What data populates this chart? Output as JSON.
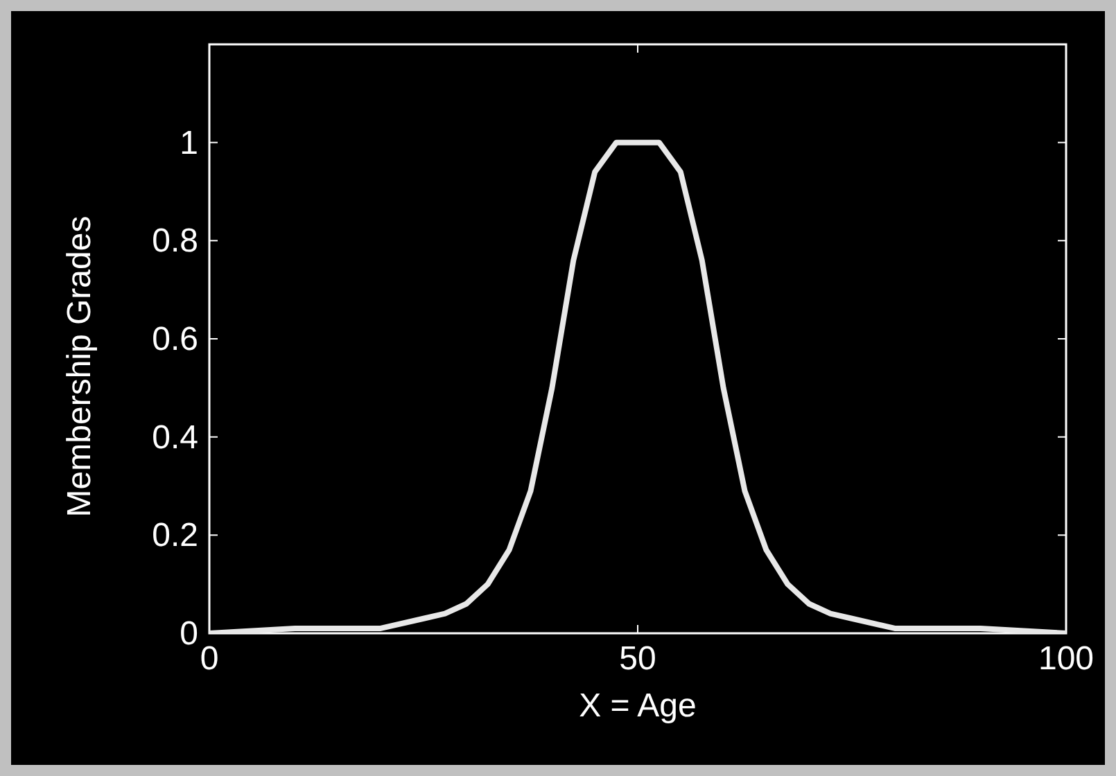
{
  "chart_data": {
    "type": "line",
    "xlabel": "X = Age",
    "ylabel": "Membership Grades",
    "x": [
      0,
      10,
      20,
      25,
      27.5,
      30,
      32.5,
      35,
      37.5,
      40,
      42.5,
      45,
      47.5,
      50,
      52.5,
      55,
      57.5,
      60,
      62.5,
      65,
      67.5,
      70,
      72.5,
      75,
      80,
      90,
      100
    ],
    "series": [
      {
        "color": "#e8e8e8",
        "values": [
          0,
          0.01,
          0.01,
          0.03,
          0.04,
          0.06,
          0.1,
          0.17,
          0.29,
          0.5,
          0.76,
          0.94,
          1,
          1,
          1,
          0.94,
          0.76,
          0.5,
          0.29,
          0.17,
          0.1,
          0.06,
          0.04,
          0.03,
          0.01,
          0.01,
          0
        ]
      }
    ],
    "xlim": [
      0,
      100
    ],
    "xticks": [
      0,
      50,
      100
    ],
    "ylim": [
      0,
      1.2
    ],
    "yticks": [
      0,
      0.2,
      0.4,
      0.6,
      0.8,
      1
    ],
    "grid": false,
    "marker": "none",
    "line_style": "solid"
  }
}
